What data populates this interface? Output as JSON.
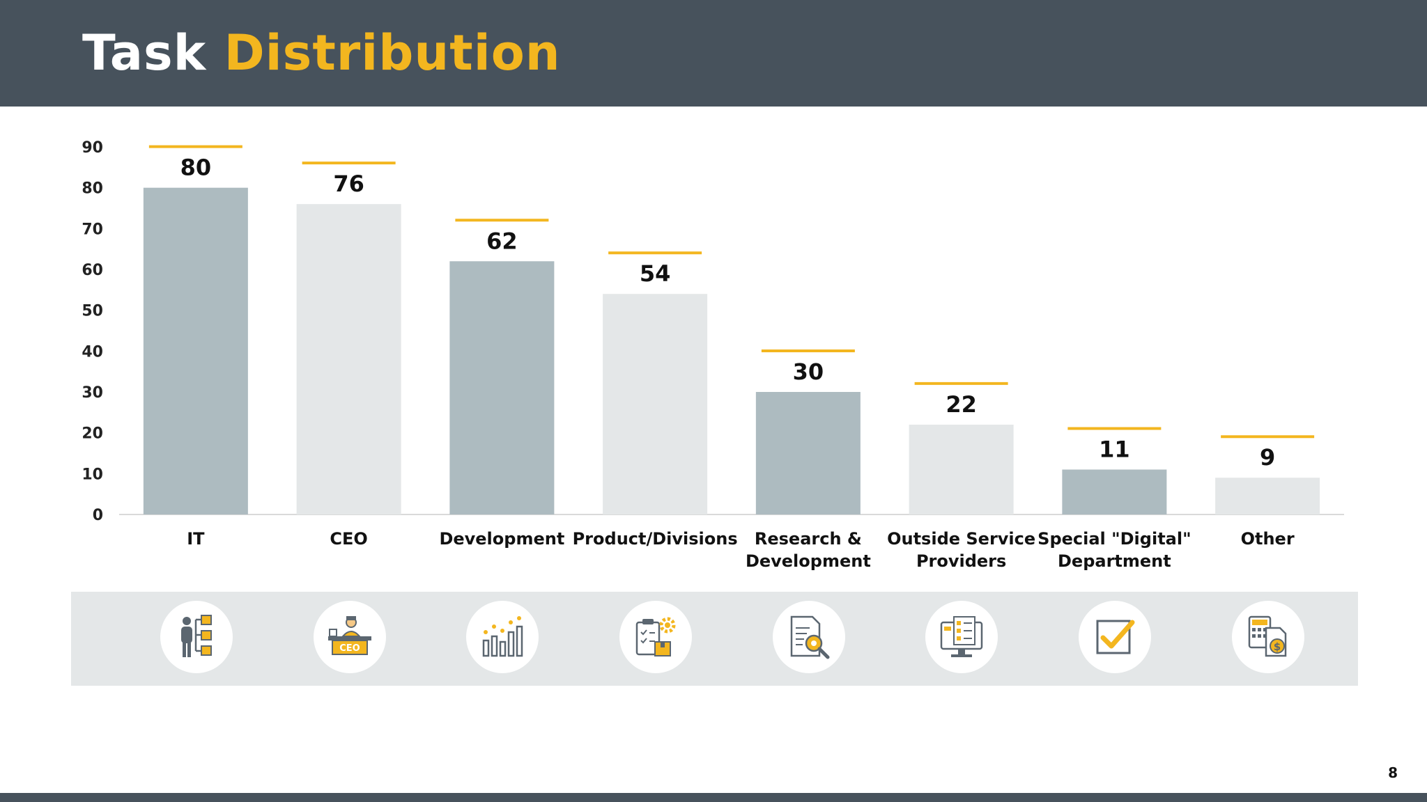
{
  "slide": {
    "title_part1": "Task",
    "title_part2": "Distribution",
    "page_number": "8"
  },
  "colors": {
    "header_bg": "#47525c",
    "accent_yellow": "#f3b61f",
    "bar_dark": "#adbbc0",
    "bar_light": "#e4e7e8",
    "icon_strip_bg": "#e4e7e8"
  },
  "chart_data": {
    "type": "bar",
    "categories": [
      [
        "IT"
      ],
      [
        "CEO"
      ],
      [
        "Development"
      ],
      [
        "Product/Divisions"
      ],
      [
        "Research &",
        "Development"
      ],
      [
        "Outside Service",
        "Providers"
      ],
      [
        "Special \"Digital\"",
        "Department"
      ],
      [
        "Other"
      ]
    ],
    "values": [
      80,
      76,
      62,
      54,
      30,
      22,
      11,
      9
    ],
    "ylim": [
      0,
      90
    ],
    "yticks": [
      0,
      10,
      20,
      30,
      40,
      50,
      60,
      70,
      80,
      90
    ],
    "bar_colors": [
      "dark",
      "light",
      "dark",
      "light",
      "dark",
      "light",
      "dark",
      "light"
    ],
    "data_labels": true,
    "grid": false,
    "legend": "none"
  },
  "icons": [
    "org-structure-icon",
    "ceo-desk-icon",
    "growth-chart-icon",
    "clipboard-gear-icon",
    "document-search-icon",
    "monitor-checklist-icon",
    "checkbox-icon",
    "calculator-dollar-icon"
  ]
}
